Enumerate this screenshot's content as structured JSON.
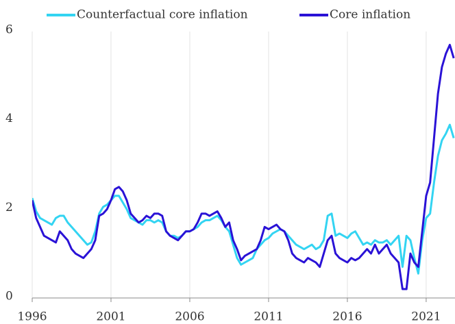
{
  "chart_data": {
    "type": "line",
    "x": [
      1996,
      1996.25,
      1996.5,
      1996.75,
      1997,
      1997.25,
      1997.5,
      1997.75,
      1998,
      1998.25,
      1998.5,
      1998.75,
      1999,
      1999.25,
      1999.5,
      1999.75,
      2000,
      2000.25,
      2000.5,
      2000.75,
      2001,
      2001.25,
      2001.5,
      2001.75,
      2002,
      2002.25,
      2002.5,
      2002.75,
      2003,
      2003.25,
      2003.5,
      2003.75,
      2004,
      2004.25,
      2004.5,
      2004.75,
      2005,
      2005.25,
      2005.5,
      2005.75,
      2006,
      2006.25,
      2006.5,
      2006.75,
      2007,
      2007.25,
      2007.5,
      2007.75,
      2008,
      2008.25,
      2008.5,
      2008.75,
      2009,
      2009.25,
      2009.5,
      2009.75,
      2010,
      2010.25,
      2010.5,
      2010.75,
      2011,
      2011.25,
      2011.5,
      2011.75,
      2012,
      2012.25,
      2012.5,
      2012.75,
      2013,
      2013.25,
      2013.5,
      2013.75,
      2014,
      2014.25,
      2014.5,
      2014.75,
      2015,
      2015.25,
      2015.5,
      2015.75,
      2016,
      2016.25,
      2016.5,
      2016.75,
      2017,
      2017.25,
      2017.5,
      2017.75,
      2018,
      2018.25,
      2018.5,
      2018.75,
      2019,
      2019.25,
      2019.5,
      2019.75,
      2020,
      2020.25,
      2020.5,
      2020.75,
      2021,
      2021.25,
      2021.5,
      2021.75,
      2022,
      2022.25,
      2022.5,
      2022.75
    ],
    "series": [
      {
        "name": "Counterfactual core inflation",
        "color": "#33d4f2",
        "values": [
          2.25,
          1.95,
          1.8,
          1.75,
          1.7,
          1.65,
          1.8,
          1.85,
          1.85,
          1.7,
          1.6,
          1.5,
          1.4,
          1.3,
          1.2,
          1.25,
          1.5,
          1.9,
          2.05,
          2.1,
          2.2,
          2.3,
          2.3,
          2.15,
          2.0,
          1.8,
          1.75,
          1.7,
          1.65,
          1.75,
          1.75,
          1.7,
          1.75,
          1.7,
          1.5,
          1.4,
          1.4,
          1.35,
          1.4,
          1.5,
          1.5,
          1.55,
          1.6,
          1.7,
          1.75,
          1.75,
          1.8,
          1.85,
          1.75,
          1.6,
          1.5,
          1.2,
          0.9,
          0.75,
          0.8,
          0.85,
          0.9,
          1.1,
          1.2,
          1.3,
          1.35,
          1.45,
          1.5,
          1.55,
          1.5,
          1.4,
          1.3,
          1.2,
          1.15,
          1.1,
          1.15,
          1.2,
          1.1,
          1.15,
          1.3,
          1.85,
          1.9,
          1.4,
          1.45,
          1.4,
          1.35,
          1.45,
          1.5,
          1.35,
          1.2,
          1.25,
          1.2,
          1.3,
          1.25,
          1.25,
          1.3,
          1.2,
          1.3,
          1.4,
          0.7,
          1.4,
          1.3,
          0.9,
          0.55,
          1.3,
          1.8,
          1.9,
          2.6,
          3.2,
          3.55,
          3.7,
          3.9,
          3.6
        ]
      },
      {
        "name": "Core inflation",
        "color": "#2a12d6",
        "values": [
          2.2,
          1.8,
          1.6,
          1.4,
          1.35,
          1.3,
          1.25,
          1.5,
          1.4,
          1.3,
          1.1,
          1.0,
          0.95,
          0.9,
          1.0,
          1.1,
          1.3,
          1.85,
          1.9,
          2.0,
          2.2,
          2.45,
          2.5,
          2.4,
          2.2,
          1.9,
          1.8,
          1.7,
          1.75,
          1.85,
          1.8,
          1.9,
          1.9,
          1.85,
          1.5,
          1.4,
          1.35,
          1.3,
          1.4,
          1.5,
          1.5,
          1.55,
          1.7,
          1.9,
          1.9,
          1.85,
          1.9,
          1.95,
          1.8,
          1.6,
          1.7,
          1.3,
          1.1,
          0.85,
          0.95,
          1.0,
          1.05,
          1.1,
          1.3,
          1.6,
          1.55,
          1.6,
          1.65,
          1.55,
          1.5,
          1.3,
          1.0,
          0.9,
          0.85,
          0.8,
          0.9,
          0.85,
          0.8,
          0.7,
          1.0,
          1.3,
          1.4,
          1.0,
          0.9,
          0.85,
          0.8,
          0.9,
          0.85,
          0.9,
          1.0,
          1.1,
          1.0,
          1.2,
          1.0,
          1.1,
          1.2,
          1.0,
          0.9,
          0.8,
          0.2,
          0.2,
          1.0,
          0.8,
          0.7,
          1.5,
          2.3,
          2.6,
          3.6,
          4.6,
          5.2,
          5.5,
          5.7,
          5.4
        ]
      }
    ],
    "xlim": [
      1996,
      2022.83
    ],
    "xticks": [
      1996,
      2001,
      2006,
      2011,
      2016,
      2021
    ],
    "ylim": [
      0,
      6
    ],
    "yticks": [
      0,
      2,
      4,
      6
    ],
    "grid": true
  }
}
